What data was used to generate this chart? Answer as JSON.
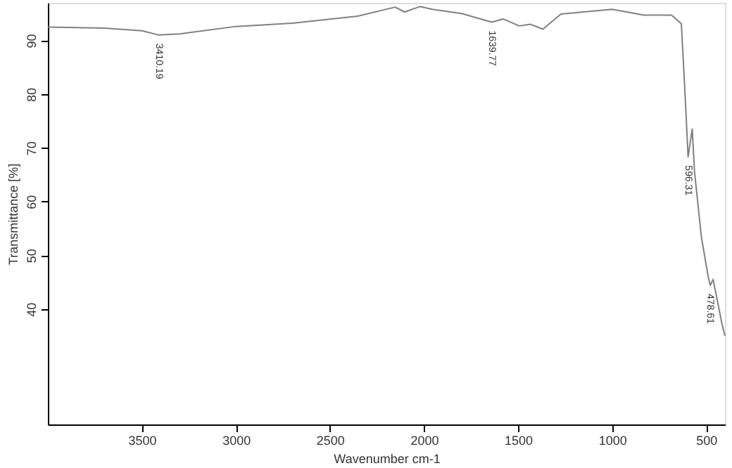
{
  "chart_data": {
    "type": "line",
    "xlabel": "Wavenumber cm-1",
    "ylabel": "Transmittance [%]",
    "xlim": [
      4000,
      400
    ],
    "xticks": [
      3500,
      3000,
      2500,
      2000,
      1500,
      1000,
      500
    ],
    "ylim": [
      18.5,
      97
    ],
    "yticks": [
      40,
      50,
      60,
      70,
      80,
      90
    ],
    "grid": false,
    "marker": "none",
    "line_style": "solid",
    "series": [
      {
        "color": "#808080",
        "x": [
          4000,
          3700,
          3500,
          3410,
          3300,
          3000,
          2700,
          2353,
          2154,
          2103,
          2022,
          1956,
          1800,
          1640,
          1580,
          1493,
          1434,
          1368,
          1272,
          1000,
          831,
          684,
          632,
          618,
          603,
          596,
          574,
          562,
          525,
          487,
          478,
          463,
          414,
          400
        ],
        "values": [
          92.5,
          92.3,
          91.8,
          91.0,
          91.2,
          92.6,
          93.2,
          94.5,
          96.2,
          95.3,
          96.3,
          95.8,
          95.0,
          93.4,
          94.0,
          92.7,
          93.0,
          92.1,
          94.9,
          95.8,
          94.7,
          94.7,
          93.1,
          84.0,
          73.5,
          68.3,
          73.5,
          65.6,
          53.3,
          45.6,
          44.4,
          45.5,
          36.9,
          35.0
        ]
      }
    ],
    "annotations": [
      {
        "text": "3410.19",
        "x": 3410,
        "y": 91.0
      },
      {
        "text": "1639.77",
        "x": 1640,
        "y": 93.4
      },
      {
        "text": "596.31",
        "x": 596,
        "y": 68.3
      },
      {
        "text": "478.61",
        "x": 478,
        "y": 44.4
      }
    ]
  }
}
